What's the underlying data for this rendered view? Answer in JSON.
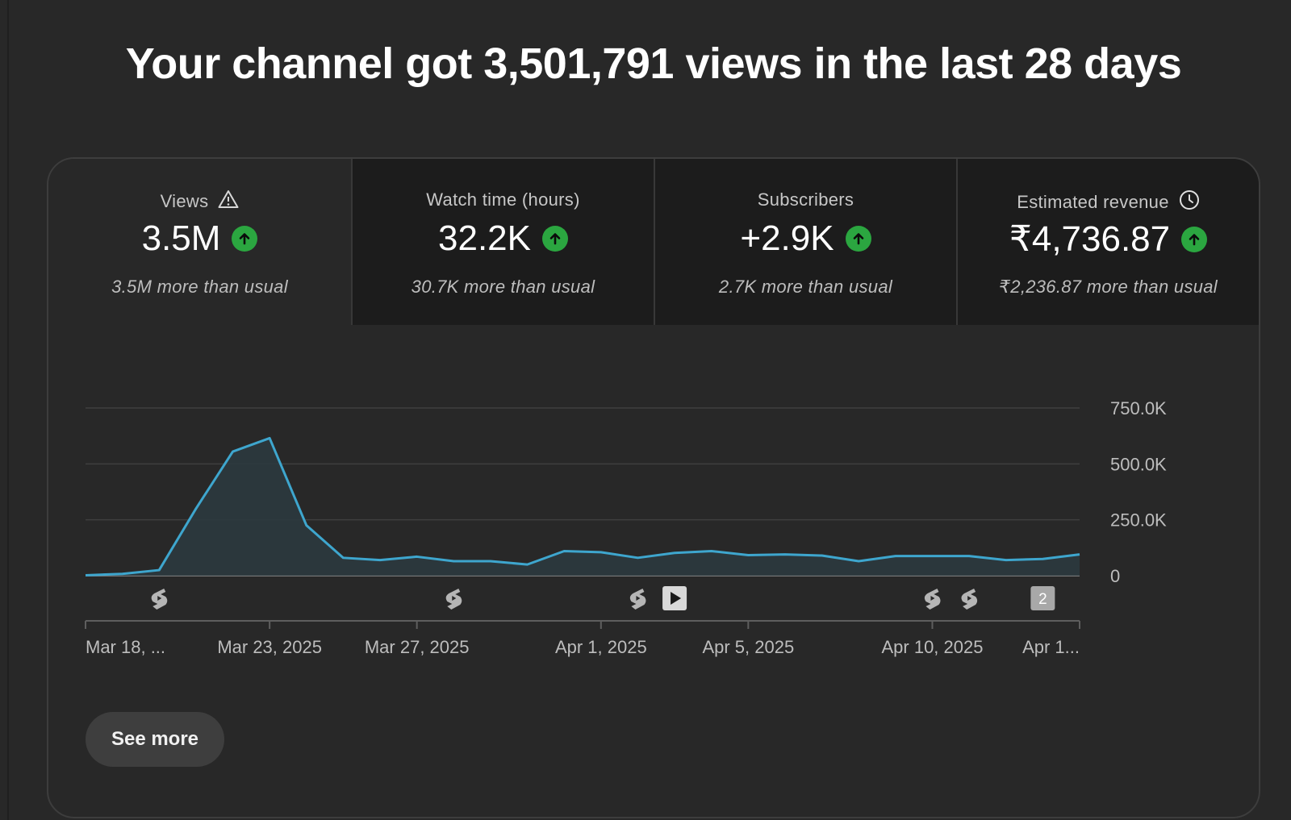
{
  "headline": "Your channel got 3,501,791 views in the last 28 days",
  "metrics": [
    {
      "title": "Views",
      "icon": "warning-icon",
      "value": "3.5M",
      "sub": "3.5M more than usual",
      "active": true
    },
    {
      "title": "Watch time (hours)",
      "icon": "",
      "value": "32.2K",
      "sub": "30.7K more than usual",
      "active": false
    },
    {
      "title": "Subscribers",
      "icon": "",
      "value": "+2.9K",
      "sub": "2.7K more than usual",
      "active": false
    },
    {
      "title": "Estimated revenue",
      "icon": "clock-icon",
      "value": "₹4,736.87",
      "sub": "₹2,236.87 more than usual",
      "active": false
    }
  ],
  "colors": {
    "line": "#3ea6ce",
    "fill": "#2c3a40",
    "up": "#2ba640",
    "grid": "#3f3f3f"
  },
  "chart_data": {
    "type": "area",
    "y_ticks": [
      "750.0K",
      "500.0K",
      "250.0K",
      "0"
    ],
    "y_tick_values": [
      750000,
      500000,
      250000,
      0
    ],
    "ylim": [
      0,
      750000
    ],
    "x_labels": [
      "Mar 18, ...",
      "Mar 23, 2025",
      "Mar 27, 2025",
      "Apr 1, 2025",
      "Apr 5, 2025",
      "Apr 10, 2025",
      "Apr 1..."
    ],
    "x_label_days": [
      0,
      5,
      9,
      14,
      18,
      23,
      27
    ],
    "values": [
      2000,
      8000,
      25000,
      300000,
      555000,
      615000,
      225000,
      80000,
      70000,
      85000,
      65000,
      65000,
      50000,
      110000,
      105000,
      80000,
      102000,
      110000,
      92000,
      95000,
      90000,
      65000,
      88000,
      88000,
      88000,
      70000,
      75000,
      95000
    ],
    "markers": [
      {
        "day": 2,
        "icon": "shorts-icon"
      },
      {
        "day": 10,
        "icon": "shorts-icon"
      },
      {
        "day": 15,
        "icon": "shorts-icon"
      },
      {
        "day": 16,
        "icon": "video-icon"
      },
      {
        "day": 23,
        "icon": "shorts-icon"
      },
      {
        "day": 24,
        "icon": "shorts-icon"
      },
      {
        "day": 26,
        "icon": "count-badge",
        "label": "2"
      }
    ]
  },
  "see_more": "See more"
}
